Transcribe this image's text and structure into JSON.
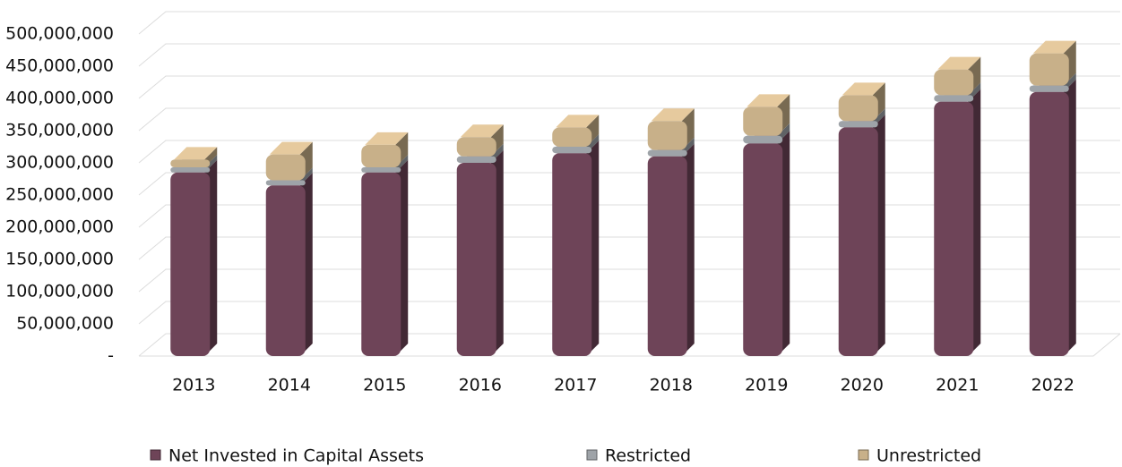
{
  "chart_data": {
    "type": "bar3d_stacked",
    "categories": [
      "2013",
      "2014",
      "2015",
      "2016",
      "2017",
      "2018",
      "2019",
      "2020",
      "2021",
      "2022"
    ],
    "series": [
      {
        "name": "Net Invested in Capital Assets",
        "color": "#6e4458",
        "values": [
          285000000,
          265000000,
          285000000,
          300000000,
          315000000,
          310000000,
          330000000,
          355000000,
          395000000,
          410000000
        ]
      },
      {
        "name": "Restricted",
        "color": "#9ea3a8",
        "values": [
          8000000,
          8000000,
          8000000,
          10000000,
          10000000,
          10000000,
          12000000,
          10000000,
          10000000,
          10000000
        ]
      },
      {
        "name": "Unrestricted",
        "color": "#c8b089",
        "values": [
          12000000,
          40000000,
          35000000,
          30000000,
          30000000,
          45000000,
          45000000,
          40000000,
          40000000,
          50000000
        ]
      }
    ],
    "ylim": [
      0,
      500000000
    ],
    "yticks": [
      {
        "value": 0,
        "label": "-"
      },
      {
        "value": 50000000,
        "label": "50,000,000"
      },
      {
        "value": 100000000,
        "label": "100,000,000"
      },
      {
        "value": 150000000,
        "label": "150,000,000"
      },
      {
        "value": 200000000,
        "label": "200,000,000"
      },
      {
        "value": 250000000,
        "label": "250,000,000"
      },
      {
        "value": 300000000,
        "label": "300,000,000"
      },
      {
        "value": 350000000,
        "label": "350,000,000"
      },
      {
        "value": 400000000,
        "label": "400,000,000"
      },
      {
        "value": 450000000,
        "label": "450,000,000"
      },
      {
        "value": 500000000,
        "label": "500,000,000"
      }
    ],
    "grid": true
  }
}
